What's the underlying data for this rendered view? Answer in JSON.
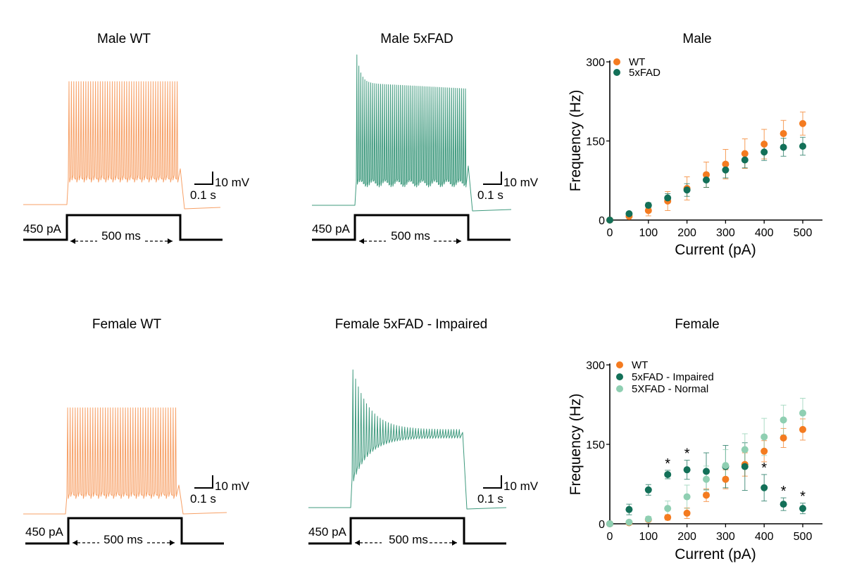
{
  "colors": {
    "wt": "#f47b20",
    "wt_trace": "#f7a066",
    "fad": "#137058",
    "fad_trace": "#3f9a7e",
    "fad_normal": "#8fcfb2",
    "black": "#111111"
  },
  "traces": [
    {
      "title": "Male WT",
      "trace_type": "wt",
      "current_label": "450 pA",
      "duration_label": "500 ms",
      "scale_mv": "10 mV",
      "scale_s": "0.1 s"
    },
    {
      "title": "Male 5xFAD",
      "trace_type": "fad",
      "current_label": "450 pA",
      "duration_label": "500 ms",
      "scale_mv": "10 mV",
      "scale_s": "0.1 s"
    },
    {
      "title": "Female WT",
      "trace_type": "wt",
      "current_label": "450 pA",
      "duration_label": "500 ms",
      "scale_mv": "10 mV",
      "scale_s": "0.1 s"
    },
    {
      "title": "Female 5xFAD - Impaired",
      "trace_type": "impaired",
      "current_label": "450 pA",
      "duration_label": "500 ms",
      "scale_mv": "10 mV",
      "scale_s": "0.1 s"
    }
  ],
  "chart_data": [
    {
      "type": "scatter",
      "title": "Male",
      "xlabel": "Current (pA)",
      "ylabel": "Frequency (Hz)",
      "xlim": [
        0,
        550
      ],
      "ylim": [
        0,
        300
      ],
      "xticks": [
        "0",
        "100",
        "200",
        "300",
        "400",
        "500"
      ],
      "yticks": [
        "0",
        "150",
        "300"
      ],
      "x": [
        0,
        50,
        100,
        150,
        200,
        250,
        300,
        350,
        400,
        450,
        500
      ],
      "series": [
        {
          "name": "WT",
          "color": "#f47b20",
          "values": [
            0,
            7,
            18,
            36,
            60,
            86,
            106,
            126,
            144,
            164,
            183
          ],
          "errors": [
            0,
            3,
            10,
            18,
            22,
            24,
            28,
            28,
            28,
            25,
            22
          ]
        },
        {
          "name": "5xFAD",
          "color": "#137058",
          "values": [
            0,
            12,
            28,
            42,
            57,
            76,
            95,
            114,
            129,
            138,
            140
          ],
          "errors": [
            0,
            3,
            5,
            8,
            12,
            14,
            15,
            15,
            16,
            17,
            17
          ]
        }
      ],
      "annotations": []
    },
    {
      "type": "scatter",
      "title": "Female",
      "xlabel": "Current (pA)",
      "ylabel": "Frequency (Hz)",
      "xlim": [
        0,
        550
      ],
      "ylim": [
        0,
        300
      ],
      "xticks": [
        "0",
        "100",
        "200",
        "300",
        "400",
        "500"
      ],
      "yticks": [
        "0",
        "150",
        "300"
      ],
      "x": [
        0,
        50,
        100,
        150,
        200,
        250,
        300,
        350,
        400,
        450,
        500
      ],
      "series": [
        {
          "name": "WT",
          "color": "#f47b20",
          "values": [
            0,
            2,
            8,
            12,
            20,
            54,
            84,
            112,
            137,
            162,
            178
          ],
          "errors": [
            0,
            2,
            3,
            5,
            10,
            12,
            18,
            22,
            20,
            18,
            20
          ]
        },
        {
          "name": "5xFAD - Impaired",
          "color": "#137058",
          "values": [
            0,
            27,
            64,
            93,
            102,
            99,
            108,
            108,
            68,
            37,
            29
          ],
          "errors": [
            0,
            10,
            10,
            8,
            18,
            35,
            40,
            45,
            25,
            12,
            10
          ]
        },
        {
          "name": "5XFAD - Normal",
          "color": "#8fcfb2",
          "values": [
            0,
            3,
            9,
            29,
            51,
            84,
            110,
            140,
            164,
            196,
            209
          ],
          "errors": [
            0,
            3,
            5,
            14,
            22,
            25,
            30,
            30,
            35,
            28,
            28
          ]
        }
      ],
      "annotations": [
        {
          "x": 150,
          "label": "*"
        },
        {
          "x": 200,
          "label": "*"
        },
        {
          "x": 400,
          "label": "*"
        },
        {
          "x": 450,
          "label": "*"
        },
        {
          "x": 500,
          "label": "*"
        }
      ]
    }
  ]
}
